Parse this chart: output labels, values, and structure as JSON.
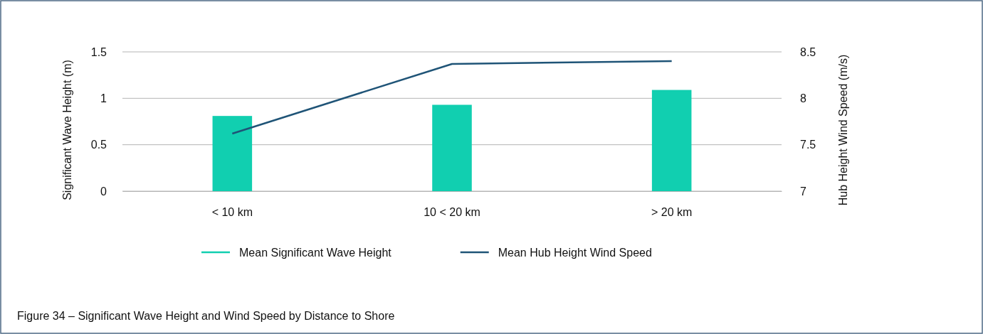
{
  "chart_data": {
    "type": "bar",
    "categories": [
      "< 10 km",
      "10 < 20 km",
      "> 20 km"
    ],
    "series": [
      {
        "name": "Mean Significant Wave Height",
        "color": "#11cfb0",
        "values": [
          0.81,
          0.93,
          1.09
        ]
      },
      {
        "name": "Mean Hub Height Wind Speed",
        "type": "line",
        "axis": "y2",
        "color": "#1f5477",
        "values": [
          7.62,
          8.37,
          8.4
        ]
      }
    ],
    "ylabel": "Significant Wave Height (m)",
    "y2label": "Hub Height Wind Speed (m/s)",
    "ylim": [
      0,
      1.5
    ],
    "yticks": [
      0,
      {
        "value": 0.5,
        "label": "0.5"
      },
      1,
      {
        "value": 1.5,
        "label": "1.5"
      }
    ],
    "y2lim": [
      7,
      8.5
    ],
    "y2ticks": [
      7,
      {
        "value": 7.5,
        "label": "7.5"
      },
      8,
      {
        "value": 8.5,
        "label": "8.5"
      }
    ],
    "grid": "y",
    "legend": "bottom",
    "marker": "none",
    "annotations": [
      "Figure 34 – Significant Wave Height and Wind Speed by Distance to Shore"
    ]
  }
}
